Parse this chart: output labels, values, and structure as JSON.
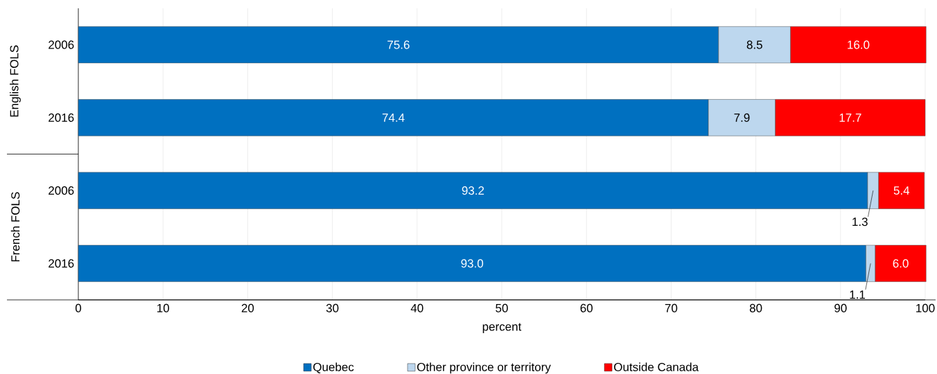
{
  "chart_data": {
    "type": "bar",
    "orientation": "horizontal",
    "stacked": true,
    "categories": [
      "2006",
      "2016",
      "2006",
      "2016"
    ],
    "series": [
      {
        "name": "Quebec",
        "color": "#0070c0",
        "values": [
          75.6,
          74.4,
          93.2,
          93.0
        ],
        "value_labels": [
          "75.6",
          "74.4",
          "93.2",
          "93.0"
        ]
      },
      {
        "name": "Other province or territory",
        "color": "#bdd7ee",
        "values": [
          8.5,
          7.9,
          1.3,
          1.1
        ],
        "value_labels": [
          "8.5",
          "7.9",
          "1.3",
          "1.1"
        ]
      },
      {
        "name": "Outside Canada",
        "color": "#ff0000",
        "values": [
          16.0,
          17.7,
          5.4,
          6.0
        ],
        "value_labels": [
          "16.0",
          "17.7",
          "5.4",
          "6.0"
        ]
      }
    ],
    "annotations": [
      "English FOLS",
      "French FOLS"
    ],
    "xlabel": "percent",
    "xlim": [
      0,
      100
    ],
    "xticks": [
      0,
      10,
      20,
      30,
      40,
      50,
      60,
      70,
      80,
      90,
      100
    ],
    "grid": "x",
    "legend": "bottom"
  }
}
